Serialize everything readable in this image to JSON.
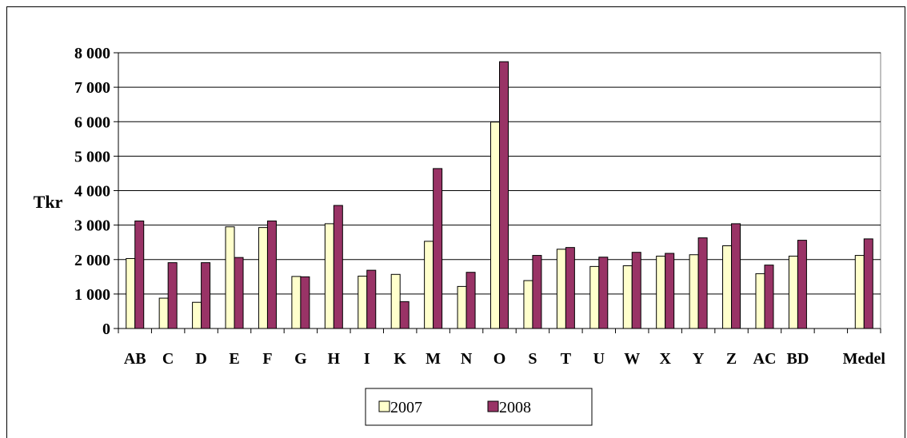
{
  "chart_data": {
    "type": "bar",
    "ylabel": "Tkr",
    "xlabel": "",
    "ylim": [
      0,
      8000
    ],
    "yticks": [
      0,
      1000,
      2000,
      3000,
      4000,
      5000,
      6000,
      7000,
      8000
    ],
    "ytick_labels": [
      "0",
      "1 000",
      "2 000",
      "3 000",
      "4 000",
      "5 000",
      "6 000",
      "7 000",
      "8 000"
    ],
    "grid": true,
    "legend_position": "bottom",
    "categories": [
      "AB",
      "C",
      "D",
      "E",
      "F",
      "G",
      "H",
      "I",
      "K",
      "M",
      "N",
      "O",
      "S",
      "T",
      "U",
      "W",
      "X",
      "Y",
      "Z",
      "AC",
      "BD",
      "",
      "Medel"
    ],
    "series": [
      {
        "name": "2007",
        "color": "#ffffcc",
        "values": [
          2030,
          880,
          760,
          2950,
          2930,
          1510,
          3040,
          1520,
          1570,
          2530,
          1220,
          5990,
          1390,
          2300,
          1800,
          1820,
          2100,
          2140,
          2400,
          1590,
          2100,
          null,
          2120
        ]
      },
      {
        "name": "2008",
        "color": "#993366",
        "values": [
          3120,
          1910,
          1910,
          2060,
          3120,
          1500,
          3570,
          1690,
          780,
          4640,
          1630,
          7740,
          2120,
          2350,
          2070,
          2210,
          2180,
          2630,
          3040,
          1840,
          2560,
          null,
          2600
        ]
      }
    ]
  }
}
